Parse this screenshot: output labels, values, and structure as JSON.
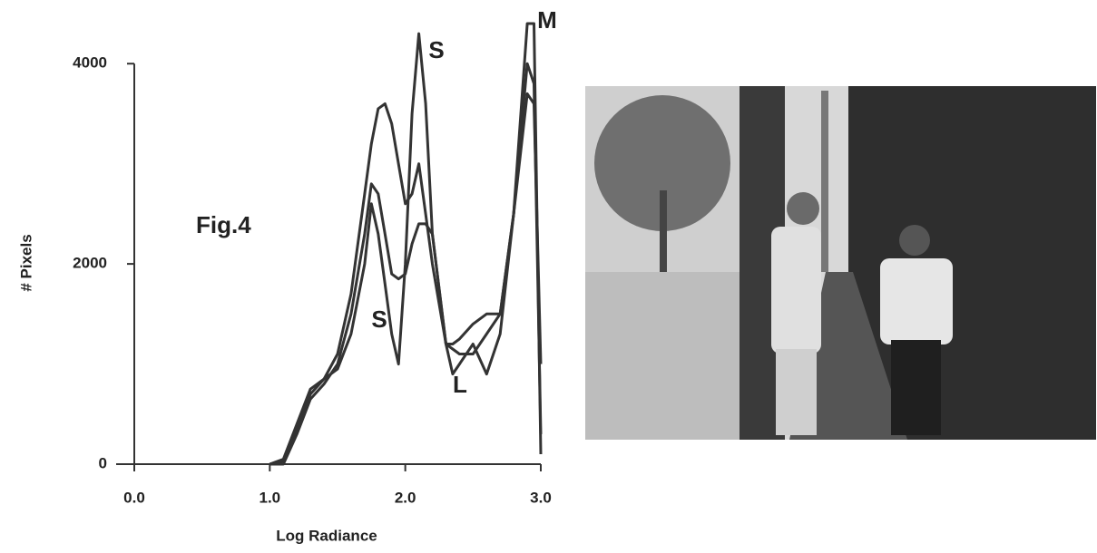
{
  "chart_data": {
    "type": "line",
    "figure_label": "Fig.4",
    "xlabel": "Log Radiance",
    "ylabel": "# Pixels",
    "x": [
      1.0,
      1.1,
      1.2,
      1.3,
      1.4,
      1.5,
      1.6,
      1.7,
      1.75,
      1.8,
      1.85,
      1.9,
      1.95,
      2.0,
      2.05,
      2.1,
      2.15,
      2.2,
      2.3,
      2.35,
      2.4,
      2.5,
      2.6,
      2.7,
      2.8,
      2.9,
      2.95,
      3.0
    ],
    "series": [
      {
        "color": "#333333",
        "values": [
          0,
          50,
          400,
          750,
          850,
          1100,
          1700,
          2700,
          3200,
          3550,
          3600,
          3400,
          3000,
          2600,
          2700,
          3000,
          2500,
          2000,
          1200,
          1200,
          1250,
          1400,
          1500,
          1500,
          2500,
          3700,
          3600,
          1000
        ]
      },
      {
        "color": "#333333",
        "values": [
          0,
          30,
          350,
          700,
          850,
          950,
          1300,
          2000,
          2600,
          2300,
          1800,
          1300,
          1000,
          2000,
          3500,
          4300,
          3600,
          2300,
          1200,
          1150,
          1100,
          1100,
          1300,
          1500,
          2500,
          4400,
          4400,
          100
        ]
      },
      {
        "color": "#333333",
        "values": [
          0,
          0,
          300,
          650,
          800,
          1000,
          1500,
          2300,
          2800,
          2700,
          2300,
          1900,
          1850,
          1900,
          2200,
          2400,
          2400,
          2300,
          1200,
          900,
          1000,
          1200,
          900,
          1300,
          2500,
          4000,
          3800,
          300
        ]
      }
    ],
    "annotations": [
      "S",
      "S",
      "L",
      "M"
    ],
    "xlim": [
      0.0,
      3.0
    ],
    "xticks": [
      {
        "value": 0,
        "label": "0.0"
      },
      {
        "value": 1,
        "label": "1.0"
      },
      {
        "value": 2,
        "label": "2.0"
      },
      {
        "value": 3,
        "label": "3.0"
      }
    ],
    "ylim": [
      0,
      4500
    ],
    "yticks": [
      0,
      2000,
      4000
    ],
    "grid": false
  }
}
